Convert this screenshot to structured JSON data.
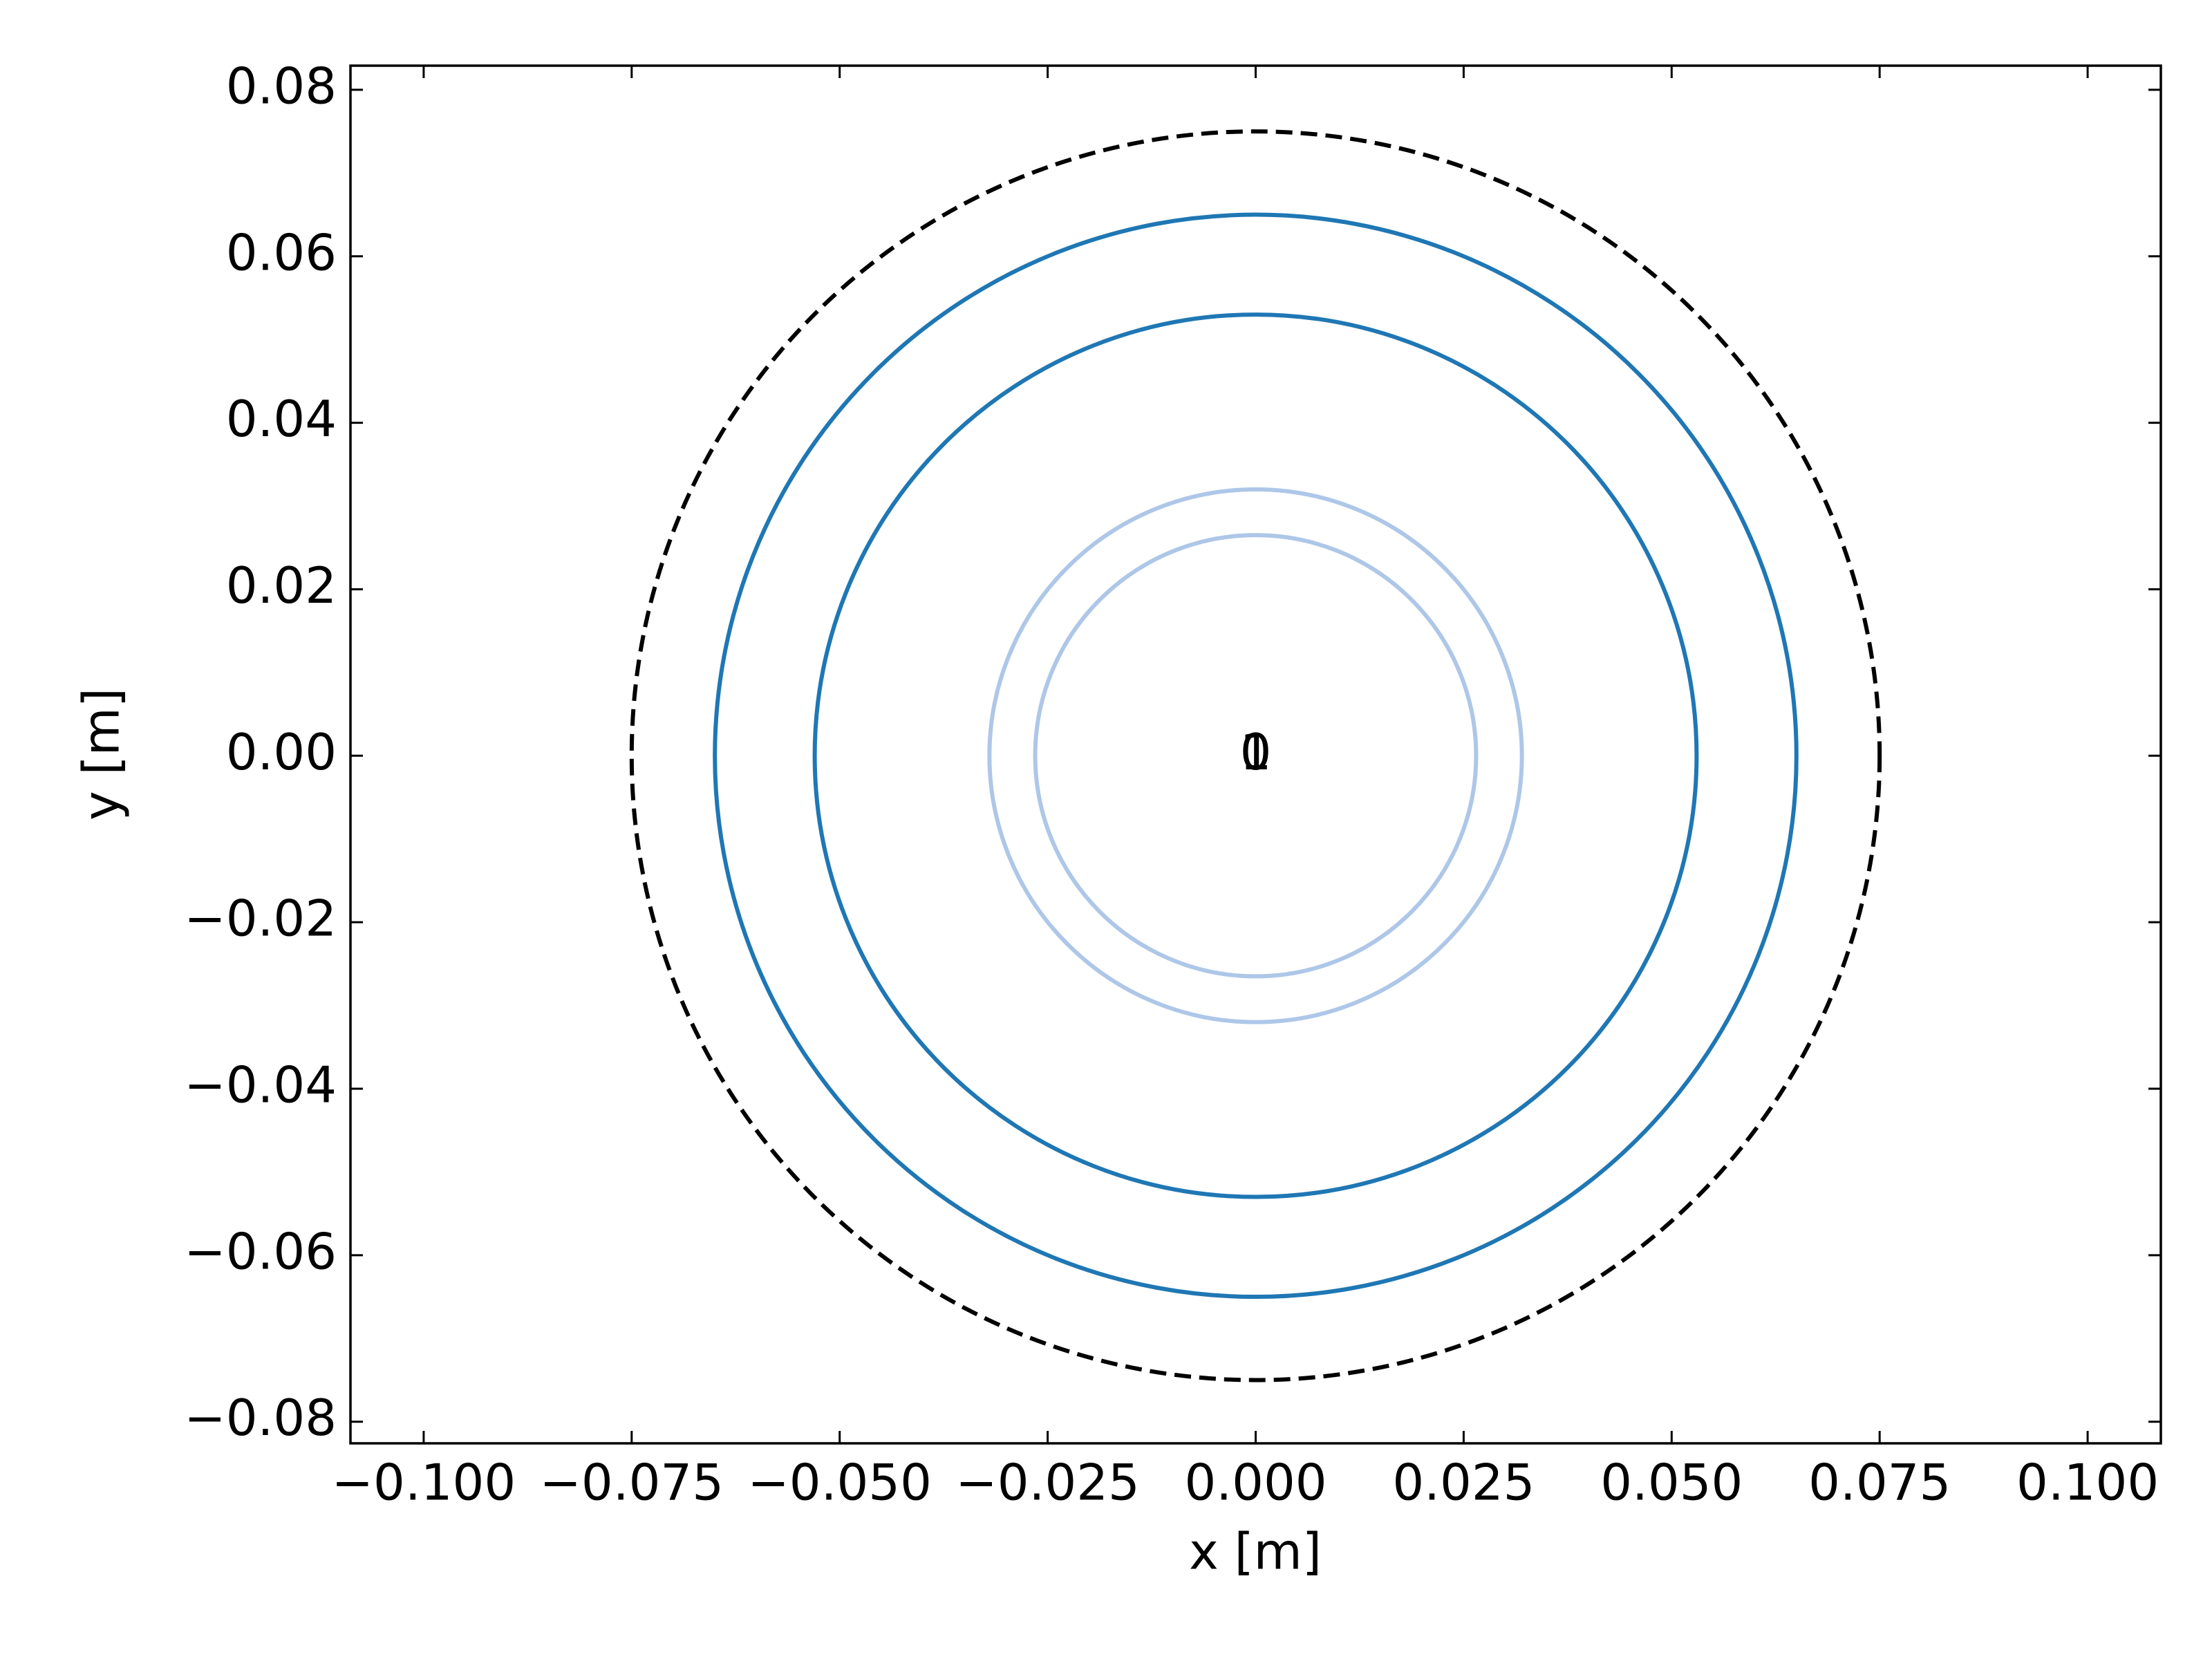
{
  "chart_data": {
    "type": "circles",
    "xlabel": "x [m]",
    "ylabel": "y [m]",
    "xlim": [
      -0.1088,
      0.1088
    ],
    "ylim": [
      -0.0826,
      0.0829
    ],
    "xticks": [
      {
        "value": -0.1,
        "label": "−0.100"
      },
      {
        "value": -0.075,
        "label": "−0.075"
      },
      {
        "value": -0.05,
        "label": "−0.050"
      },
      {
        "value": -0.025,
        "label": "−0.025"
      },
      {
        "value": 0,
        "label": "0.000"
      },
      {
        "value": 0.025,
        "label": "0.025"
      },
      {
        "value": 0.05,
        "label": "0.050"
      },
      {
        "value": 0.075,
        "label": "0.075"
      },
      {
        "value": 0.1,
        "label": "0.100"
      }
    ],
    "yticks": [
      {
        "value": -0.08,
        "label": "−0.08"
      },
      {
        "value": -0.06,
        "label": "−0.06"
      },
      {
        "value": -0.04,
        "label": "−0.04"
      },
      {
        "value": -0.02,
        "label": "−0.02"
      },
      {
        "value": 0,
        "label": "0.00"
      },
      {
        "value": 0.02,
        "label": "0.02"
      },
      {
        "value": 0.04,
        "label": "0.04"
      },
      {
        "value": 0.06,
        "label": "0.06"
      },
      {
        "value": 0.08,
        "label": "0.08"
      }
    ],
    "circles": [
      {
        "cx": 0,
        "cy": 0,
        "r": 0.075,
        "color": "#000000",
        "dashed": true
      },
      {
        "cx": 0,
        "cy": 0,
        "r": 0.065,
        "color": "#1f77b4",
        "dashed": false
      },
      {
        "cx": 0,
        "cy": 0,
        "r": 0.053,
        "color": "#1f77b4",
        "dashed": false
      },
      {
        "cx": 0,
        "cy": 0,
        "r": 0.032,
        "color": "#aec7e8",
        "dashed": false
      },
      {
        "cx": 0,
        "cy": 0,
        "r": 0.0265,
        "color": "#aec7e8",
        "dashed": false
      }
    ],
    "annotations": [
      {
        "text": "0",
        "x": 0,
        "y": 0
      },
      {
        "text": "1",
        "x": 0,
        "y": 0
      }
    ]
  }
}
